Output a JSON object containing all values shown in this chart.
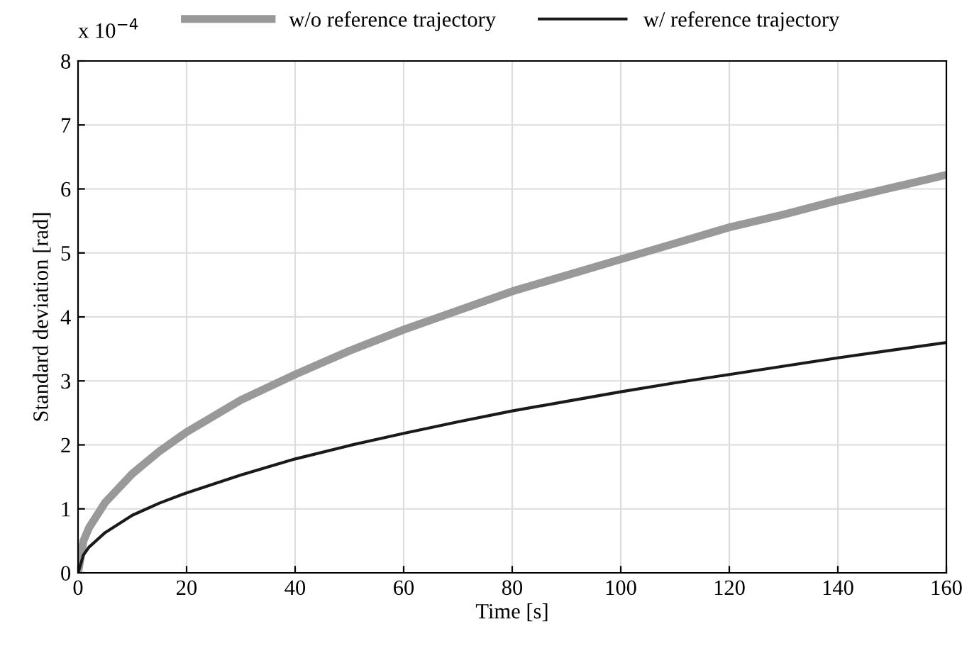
{
  "chart_data": {
    "type": "line",
    "xlabel": "Time [s]",
    "ylabel": "Standard deviation [rad]",
    "x": [
      0,
      1,
      2,
      5,
      10,
      15,
      20,
      30,
      40,
      50,
      60,
      70,
      80,
      90,
      100,
      110,
      120,
      130,
      140,
      150,
      160
    ],
    "series": [
      {
        "name": "w/o reference trajectory",
        "color": "#999999",
        "values": [
          0,
          0.5,
          0.7,
          1.1,
          1.55,
          1.9,
          2.2,
          2.7,
          3.1,
          3.47,
          3.8,
          4.1,
          4.4,
          4.65,
          4.9,
          5.15,
          5.4,
          5.6,
          5.82,
          6.02,
          6.22
        ]
      },
      {
        "name": "w/ reference trajectory",
        "color": "#1a1a1a",
        "values": [
          0,
          0.28,
          0.4,
          0.63,
          0.9,
          1.09,
          1.25,
          1.53,
          1.78,
          1.99,
          2.18,
          2.36,
          2.53,
          2.68,
          2.83,
          2.97,
          3.1,
          3.23,
          3.36,
          3.48,
          3.6
        ]
      }
    ],
    "xlim": [
      0,
      160
    ],
    "xticks": [
      0,
      20,
      40,
      60,
      80,
      100,
      120,
      140,
      160
    ],
    "ylim": [
      0,
      8
    ],
    "yticks": [
      0,
      1,
      2,
      3,
      4,
      5,
      6,
      7,
      8
    ],
    "annotations": [
      "x 10$^{−4}$"
    ],
    "grid": true,
    "legend": "top",
    "marker": "none",
    "line_style": "solid"
  }
}
